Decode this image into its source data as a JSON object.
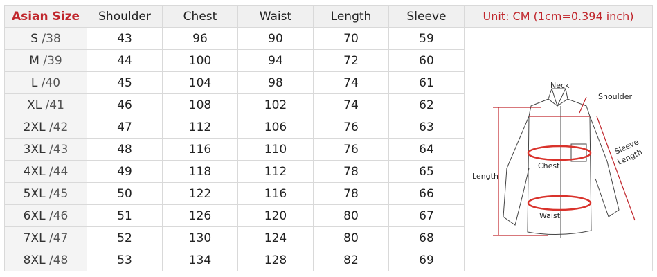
{
  "header": {
    "size_label": "Asian Size",
    "columns": [
      "Shoulder",
      "Chest",
      "Waist",
      "Length",
      "Sleeve"
    ],
    "unit_note": "Unit: CM (1cm=0.394 inch)"
  },
  "rows": [
    {
      "size": "S",
      "eu": "/38",
      "values": [
        "43",
        "96",
        "90",
        "70",
        "59"
      ]
    },
    {
      "size": "M",
      "eu": "/39",
      "values": [
        "44",
        "100",
        "94",
        "72",
        "60"
      ]
    },
    {
      "size": "L",
      "eu": "/40",
      "values": [
        "45",
        "104",
        "98",
        "74",
        "61"
      ]
    },
    {
      "size": "XL",
      "eu": "/41",
      "values": [
        "46",
        "108",
        "102",
        "74",
        "62"
      ]
    },
    {
      "size": "2XL",
      "eu": "/42",
      "values": [
        "47",
        "112",
        "106",
        "76",
        "63"
      ]
    },
    {
      "size": "3XL",
      "eu": "/43",
      "values": [
        "48",
        "116",
        "110",
        "76",
        "64"
      ]
    },
    {
      "size": "4XL",
      "eu": "/44",
      "values": [
        "49",
        "118",
        "112",
        "78",
        "65"
      ]
    },
    {
      "size": "5XL",
      "eu": "/45",
      "values": [
        "50",
        "122",
        "116",
        "78",
        "66"
      ]
    },
    {
      "size": "6XL",
      "eu": "/46",
      "values": [
        "51",
        "126",
        "120",
        "80",
        "67"
      ]
    },
    {
      "size": "7XL",
      "eu": "/47",
      "values": [
        "52",
        "130",
        "124",
        "80",
        "68"
      ]
    },
    {
      "size": "8XL",
      "eu": "/48",
      "values": [
        "53",
        "134",
        "128",
        "82",
        "69"
      ]
    }
  ],
  "diagram": {
    "neck": "Neck",
    "shoulder": "Shoulder",
    "chest": "Chest",
    "waist": "Waist",
    "length": "Length",
    "sleeve_1": "Sleeve",
    "sleeve_2": "Length"
  },
  "colors": {
    "accent": "#c0262c",
    "measure": "#d9322b"
  }
}
